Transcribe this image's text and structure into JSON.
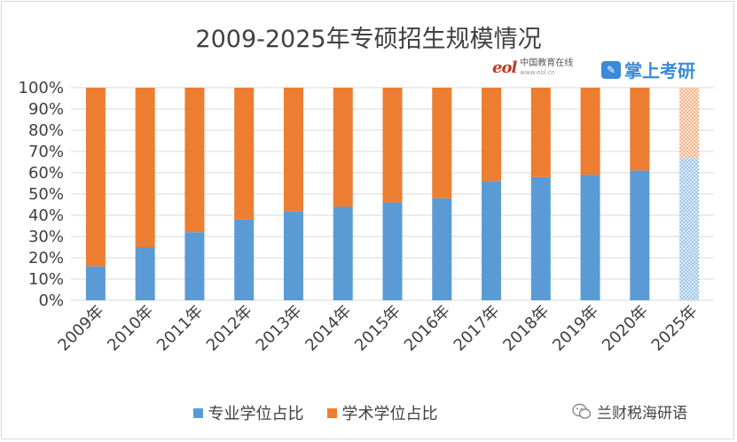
{
  "chart_data": {
    "type": "bar",
    "stacked": true,
    "title": "2009-2025年专硕招生规模情况",
    "categories": [
      "2009年",
      "2010年",
      "2011年",
      "2012年",
      "2013年",
      "2014年",
      "2015年",
      "2016年",
      "2017年",
      "2018年",
      "2019年",
      "2020年",
      "2025年"
    ],
    "series": [
      {
        "name": "专业学位占比",
        "color": "#5b9bd5",
        "values": [
          16,
          25,
          32,
          38,
          42,
          44,
          46,
          48,
          56,
          58,
          59,
          61,
          67
        ]
      },
      {
        "name": "学术学位占比",
        "color": "#ed7d31",
        "values": [
          84,
          75,
          68,
          62,
          58,
          56,
          54,
          52,
          44,
          42,
          41,
          39,
          33
        ]
      }
    ],
    "projected_categories": [
      "2025年"
    ],
    "ylim": [
      0,
      100
    ],
    "yticks": [
      "0%",
      "10%",
      "20%",
      "30%",
      "40%",
      "50%",
      "60%",
      "70%",
      "80%",
      "90%",
      "100%"
    ],
    "grid": true,
    "legend_position": "bottom"
  },
  "watermarks": {
    "eol_logo": "eol",
    "eol_name": "中国教育在线",
    "eol_url": "www.eol.cn",
    "kaoyan_name": "掌上考研"
  },
  "footer": {
    "wechat_account": "兰财税海研语"
  },
  "icons": {
    "wechat": "wechat-icon",
    "kaoyan": "kaoyan-app-icon"
  }
}
